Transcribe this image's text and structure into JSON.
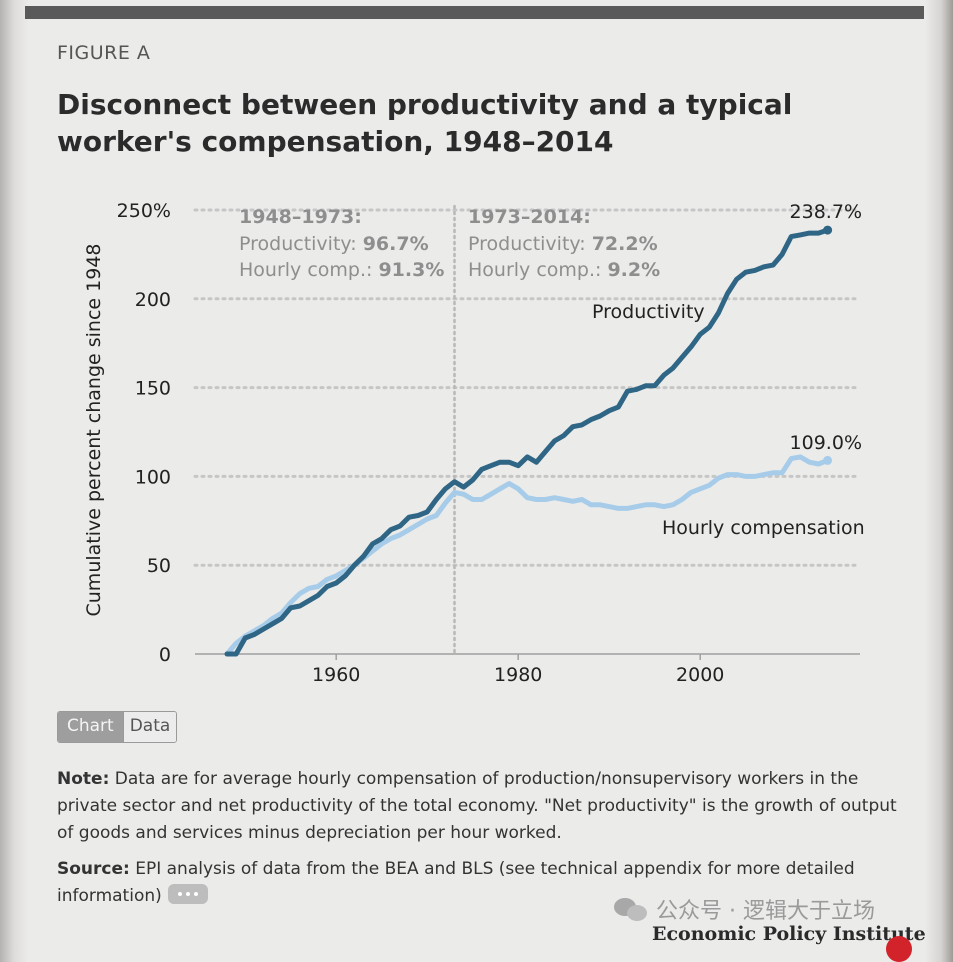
{
  "figure_label": "FIGURE A",
  "title": "Disconnect between productivity and a typical worker's compensation, 1948–2014",
  "toggle": {
    "chart_label": "Chart",
    "data_label": "Data"
  },
  "note": {
    "label": "Note:",
    "text": " Data are for average hourly compensation of production/nonsupervisory workers in the private sector and net productivity of the total economy. \"Net productivity\" is the growth of output of goods and services minus depreciation per hour worked."
  },
  "source": {
    "label": "Source:",
    "text": " EPI analysis of data from the BEA and BLS (see technical appendix for more detailed information)"
  },
  "watermark": "公众号 · 逻辑大于立场",
  "publisher": "Economic Policy Institute",
  "chart_data": {
    "type": "line",
    "title": "Disconnect between productivity and a typical worker's compensation, 1948–2014",
    "ylabel": "Cumulative percent change since 1948",
    "xlabel": "",
    "xlim": [
      1945,
      2016
    ],
    "ylim": [
      0,
      250
    ],
    "yticks": [
      0,
      50,
      100,
      150,
      200,
      250
    ],
    "ytick_labels": [
      "0",
      "50",
      "100",
      "150",
      "200",
      "250%"
    ],
    "xticks": [
      1960,
      1980,
      2000
    ],
    "xtick_labels": [
      "1960",
      "1980",
      "2000"
    ],
    "grid": true,
    "divider_year": 1973,
    "colors": {
      "productivity": "#2f6585",
      "compensation": "#a7cce9"
    },
    "period_boxes": [
      {
        "heading": "1948–1973:",
        "prod_label": "Productivity: ",
        "prod_value": "96.7%",
        "comp_label": "Hourly comp.: ",
        "comp_value": "91.3%"
      },
      {
        "heading": "1973–2014:",
        "prod_label": "Productivity: ",
        "prod_value": "72.2%",
        "comp_label": "Hourly comp.: ",
        "comp_value": "9.2%"
      }
    ],
    "series": [
      {
        "name": "Productivity",
        "end_label": "238.7%",
        "x": [
          1948,
          1949,
          1950,
          1951,
          1952,
          1953,
          1954,
          1955,
          1956,
          1957,
          1958,
          1959,
          1960,
          1961,
          1962,
          1963,
          1964,
          1965,
          1966,
          1967,
          1968,
          1969,
          1970,
          1971,
          1972,
          1973,
          1974,
          1975,
          1976,
          1977,
          1978,
          1979,
          1980,
          1981,
          1982,
          1983,
          1984,
          1985,
          1986,
          1987,
          1988,
          1989,
          1990,
          1991,
          1992,
          1993,
          1994,
          1995,
          1996,
          1997,
          1998,
          1999,
          2000,
          2001,
          2002,
          2003,
          2004,
          2005,
          2006,
          2007,
          2008,
          2009,
          2010,
          2011,
          2012,
          2013,
          2014
        ],
        "y": [
          0,
          0,
          9,
          11,
          14,
          17,
          20,
          26,
          27,
          30,
          33,
          38,
          40,
          44,
          50,
          55,
          62,
          65,
          70,
          72,
          77,
          78,
          80,
          87,
          93,
          97,
          94,
          98,
          104,
          106,
          108,
          108,
          106,
          111,
          108,
          114,
          120,
          123,
          128,
          129,
          132,
          134,
          137,
          139,
          148,
          149,
          151,
          151,
          157,
          161,
          167,
          173,
          180,
          184,
          192,
          203,
          211,
          215,
          216,
          218,
          219,
          225,
          235,
          236,
          237,
          237,
          238.7
        ]
      },
      {
        "name": "Hourly compensation",
        "end_label": "109.0%",
        "x": [
          1948,
          1949,
          1950,
          1951,
          1952,
          1953,
          1954,
          1955,
          1956,
          1957,
          1958,
          1959,
          1960,
          1961,
          1962,
          1963,
          1964,
          1965,
          1966,
          1967,
          1968,
          1969,
          1970,
          1971,
          1972,
          1973,
          1974,
          1975,
          1976,
          1977,
          1978,
          1979,
          1980,
          1981,
          1982,
          1983,
          1984,
          1985,
          1986,
          1987,
          1988,
          1989,
          1990,
          1991,
          1992,
          1993,
          1994,
          1995,
          1996,
          1997,
          1998,
          1999,
          2000,
          2001,
          2002,
          2003,
          2004,
          2005,
          2006,
          2007,
          2008,
          2009,
          2010,
          2011,
          2012,
          2013,
          2014
        ],
        "y": [
          0,
          6,
          10,
          13,
          16,
          20,
          23,
          29,
          34,
          37,
          38,
          42,
          44,
          47,
          50,
          54,
          58,
          62,
          65,
          67,
          70,
          73,
          76,
          78,
          85,
          91,
          90,
          87,
          87,
          90,
          93,
          96,
          93,
          88,
          87,
          87,
          88,
          87,
          86,
          87,
          84,
          84,
          83,
          82,
          82,
          83,
          84,
          84,
          83,
          84,
          87,
          91,
          93,
          95,
          99,
          101,
          101,
          100,
          100,
          101,
          102,
          102,
          110,
          111,
          108,
          107,
          109
        ]
      }
    ]
  }
}
